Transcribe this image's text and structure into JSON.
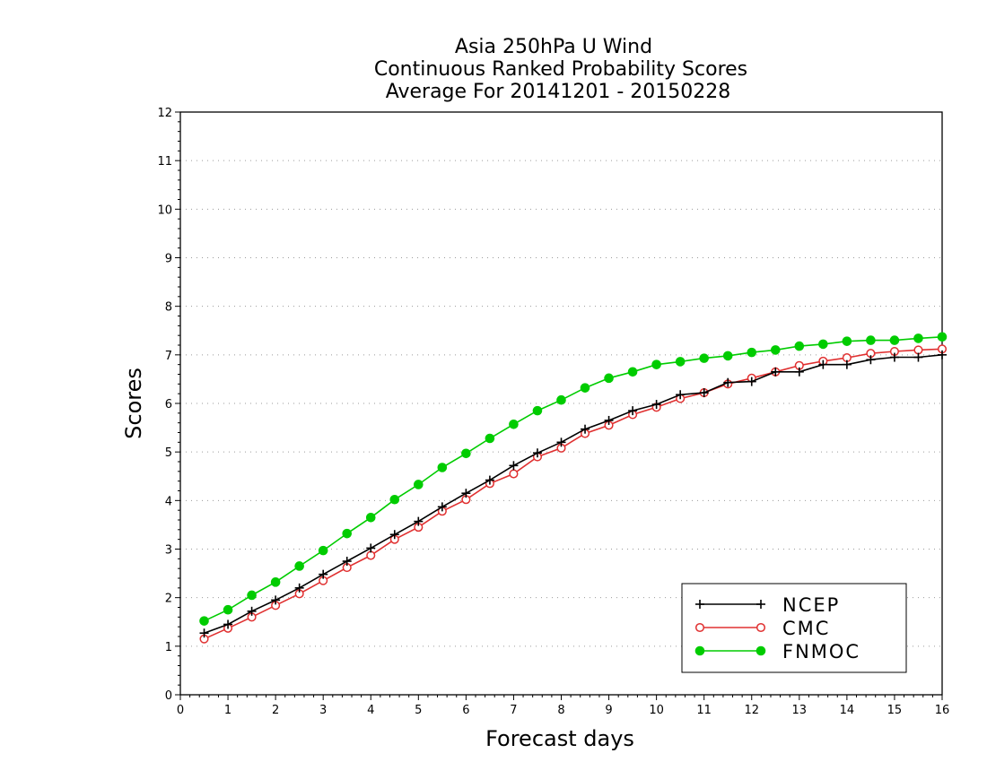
{
  "chart_data": {
    "type": "line",
    "title": [
      "Asia 250hPa U Wind",
      "Continuous Ranked Probability Scores",
      "Average For 20141201 - 20150228"
    ],
    "xlabel": "Forecast days",
    "ylabel": "Scores",
    "xlim": [
      0,
      16
    ],
    "ylim": [
      0,
      12
    ],
    "xticks": [
      "0",
      "1",
      "2",
      "3",
      "4",
      "5",
      "6",
      "7",
      "8",
      "9",
      "10",
      "11",
      "12",
      "13",
      "14",
      "15",
      "16"
    ],
    "yticks": [
      "0",
      "1",
      "2",
      "3",
      "4",
      "5",
      "6",
      "7",
      "8",
      "9",
      "10",
      "11",
      "12"
    ],
    "grid": "horizontal-dotted",
    "legend_position": "bottom-right",
    "x": [
      0.5,
      1,
      1.5,
      2,
      2.5,
      3,
      3.5,
      4,
      4.5,
      5,
      5.5,
      6,
      6.5,
      7,
      7.5,
      8,
      8.5,
      9,
      9.5,
      10,
      10.5,
      11,
      11.5,
      12,
      12.5,
      13,
      13.5,
      14,
      14.5,
      15,
      15.5,
      16
    ],
    "series": [
      {
        "name": "NCEP",
        "color": "#000000",
        "marker": "plus",
        "values": [
          1.27,
          1.45,
          1.72,
          1.95,
          2.2,
          2.48,
          2.75,
          3.02,
          3.3,
          3.57,
          3.87,
          4.15,
          4.42,
          4.72,
          4.98,
          5.2,
          5.47,
          5.65,
          5.85,
          5.98,
          6.18,
          6.22,
          6.43,
          6.45,
          6.65,
          6.65,
          6.8,
          6.8,
          6.9,
          6.95,
          6.95,
          7.0
        ]
      },
      {
        "name": "CMC",
        "color": "#e03030",
        "marker": "open-circle",
        "values": [
          1.15,
          1.37,
          1.6,
          1.84,
          2.08,
          2.35,
          2.62,
          2.87,
          3.2,
          3.45,
          3.78,
          4.02,
          4.35,
          4.55,
          4.9,
          5.08,
          5.38,
          5.55,
          5.77,
          5.92,
          6.1,
          6.22,
          6.4,
          6.52,
          6.65,
          6.78,
          6.87,
          6.94,
          7.03,
          7.07,
          7.1,
          7.12
        ]
      },
      {
        "name": "FNMOC",
        "color": "#00cc00",
        "marker": "filled-circle",
        "values": [
          1.52,
          1.75,
          2.05,
          2.32,
          2.65,
          2.97,
          3.32,
          3.65,
          4.02,
          4.33,
          4.68,
          4.97,
          5.28,
          5.57,
          5.85,
          6.07,
          6.32,
          6.52,
          6.65,
          6.8,
          6.86,
          6.93,
          6.98,
          7.05,
          7.1,
          7.18,
          7.22,
          7.28,
          7.3,
          7.3,
          7.34,
          7.37
        ]
      }
    ]
  }
}
